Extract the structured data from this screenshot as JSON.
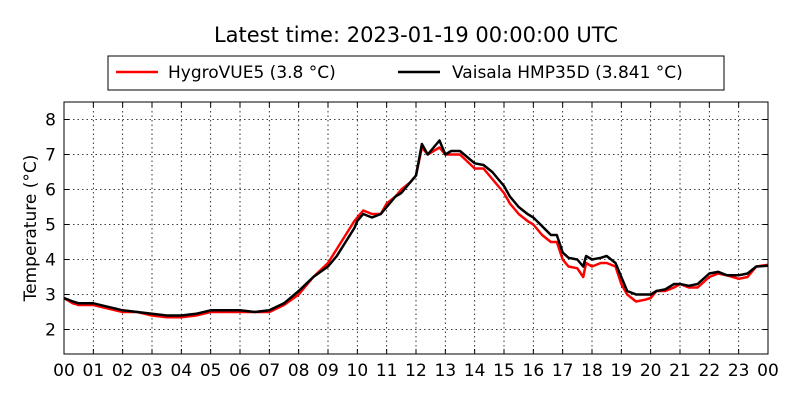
{
  "chart_data": {
    "type": "line",
    "title": "Latest time: 2023-01-19 00:00:00 UTC",
    "ylabel": "Temperature (°C)",
    "xlabel": "",
    "xlim": [
      0,
      24
    ],
    "ylim": [
      1.3,
      8.5
    ],
    "x_ticks": [
      0,
      1,
      2,
      3,
      4,
      5,
      6,
      7,
      8,
      9,
      10,
      11,
      12,
      13,
      14,
      15,
      16,
      17,
      18,
      19,
      20,
      21,
      22,
      23,
      24
    ],
    "x_tick_labels": [
      "00",
      "01",
      "02",
      "03",
      "04",
      "05",
      "06",
      "07",
      "08",
      "09",
      "10",
      "11",
      "12",
      "13",
      "14",
      "15",
      "16",
      "17",
      "18",
      "19",
      "20",
      "21",
      "22",
      "23",
      "00"
    ],
    "y_ticks": [
      2,
      3,
      4,
      5,
      6,
      7,
      8
    ],
    "y_tick_labels": [
      "2",
      "3",
      "4",
      "5",
      "6",
      "7",
      "8"
    ],
    "grid": true,
    "legend_position": "top",
    "series": [
      {
        "name": "HygroVUE5 (3.8 °C)",
        "color": "#ff0000",
        "x": [
          0,
          0.3,
          0.5,
          1,
          1.5,
          2,
          2.5,
          3,
          3.5,
          4,
          4.5,
          5,
          5.5,
          6,
          6.5,
          7,
          7.5,
          8,
          8.5,
          9,
          9.3,
          9.6,
          9.9,
          10,
          10.2,
          10.5,
          10.8,
          11,
          11.3,
          11.5,
          11.8,
          12,
          12.2,
          12.4,
          12.6,
          12.8,
          13,
          13.2,
          13.5,
          14,
          14.3,
          14.6,
          15,
          15.2,
          15.5,
          15.8,
          16,
          16.3,
          16.6,
          16.8,
          17,
          17.2,
          17.5,
          17.7,
          17.8,
          18,
          18.3,
          18.5,
          18.8,
          19,
          19.2,
          19.5,
          19.8,
          20,
          20.2,
          20.5,
          20.8,
          21,
          21.3,
          21.6,
          22,
          22.3,
          22.6,
          23,
          23.3,
          23.6,
          24
        ],
        "y": [
          2.9,
          2.75,
          2.7,
          2.7,
          2.6,
          2.5,
          2.5,
          2.4,
          2.35,
          2.35,
          2.4,
          2.5,
          2.5,
          2.5,
          2.5,
          2.5,
          2.7,
          3.0,
          3.5,
          3.9,
          4.3,
          4.7,
          5.1,
          5.2,
          5.4,
          5.3,
          5.3,
          5.6,
          5.8,
          6.0,
          6.2,
          6.4,
          7.2,
          7.0,
          7.1,
          7.2,
          7.0,
          7.0,
          7.0,
          6.6,
          6.6,
          6.3,
          5.9,
          5.6,
          5.3,
          5.1,
          5.0,
          4.7,
          4.5,
          4.5,
          4.0,
          3.8,
          3.75,
          3.5,
          3.9,
          3.8,
          3.9,
          3.9,
          3.8,
          3.3,
          3.0,
          2.8,
          2.85,
          2.9,
          3.1,
          3.1,
          3.2,
          3.3,
          3.2,
          3.2,
          3.5,
          3.6,
          3.55,
          3.45,
          3.5,
          3.8,
          3.85
        ]
      },
      {
        "name": "Vaisala HMP35D (3.841 °C)",
        "color": "#000000",
        "x": [
          0,
          0.3,
          0.5,
          1,
          1.5,
          2,
          2.5,
          3,
          3.5,
          4,
          4.5,
          5,
          5.5,
          6,
          6.5,
          7,
          7.5,
          8,
          8.5,
          9,
          9.3,
          9.6,
          9.9,
          10,
          10.2,
          10.5,
          10.8,
          11,
          11.3,
          11.5,
          11.8,
          12,
          12.2,
          12.4,
          12.6,
          12.8,
          13,
          13.2,
          13.5,
          14,
          14.3,
          14.6,
          15,
          15.2,
          15.5,
          15.8,
          16,
          16.3,
          16.6,
          16.8,
          17,
          17.2,
          17.5,
          17.7,
          17.8,
          18,
          18.3,
          18.5,
          18.8,
          19,
          19.2,
          19.5,
          19.8,
          20,
          20.2,
          20.5,
          20.8,
          21,
          21.3,
          21.6,
          22,
          22.3,
          22.6,
          23,
          23.3,
          23.6,
          24
        ],
        "y": [
          2.9,
          2.8,
          2.75,
          2.75,
          2.65,
          2.55,
          2.5,
          2.45,
          2.4,
          2.4,
          2.45,
          2.55,
          2.55,
          2.55,
          2.5,
          2.55,
          2.75,
          3.1,
          3.5,
          3.8,
          4.1,
          4.5,
          4.9,
          5.1,
          5.3,
          5.2,
          5.3,
          5.5,
          5.8,
          5.9,
          6.2,
          6.4,
          7.3,
          7.0,
          7.2,
          7.4,
          7.0,
          7.1,
          7.1,
          6.75,
          6.7,
          6.5,
          6.1,
          5.8,
          5.5,
          5.3,
          5.2,
          4.95,
          4.7,
          4.7,
          4.2,
          4.05,
          4.0,
          3.8,
          4.1,
          4.0,
          4.05,
          4.1,
          3.9,
          3.5,
          3.1,
          3.0,
          3.0,
          3.0,
          3.1,
          3.15,
          3.3,
          3.3,
          3.25,
          3.3,
          3.6,
          3.65,
          3.55,
          3.55,
          3.6,
          3.8,
          3.82
        ]
      }
    ]
  }
}
